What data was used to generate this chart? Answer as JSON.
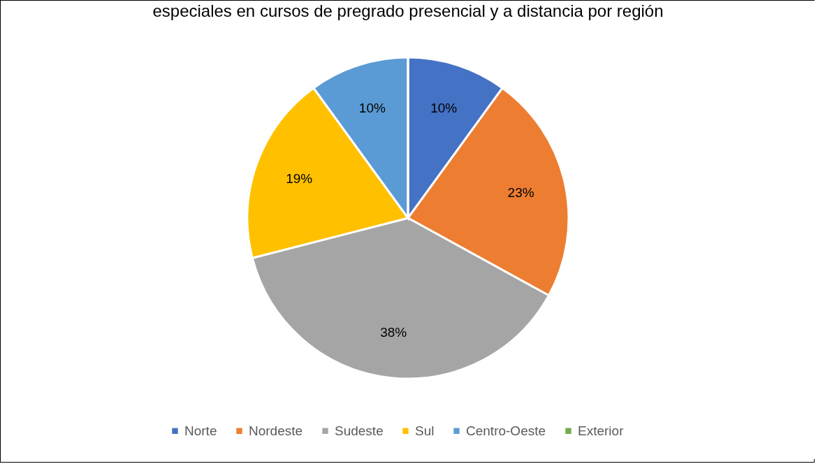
{
  "chart_data": {
    "type": "pie",
    "title": "especiales en cursos de pregrado presencial y a distancia por región",
    "categories": [
      "Norte",
      "Nordeste",
      "Sudeste",
      "Sul",
      "Centro-Oeste",
      "Exterior"
    ],
    "values": [
      10,
      23,
      38,
      19,
      10,
      0
    ],
    "colors": [
      "#4472c4",
      "#ed7d31",
      "#a5a5a5",
      "#ffc000",
      "#5b9bd5",
      "#70ad47"
    ],
    "value_labels": [
      "10%",
      "23%",
      "38%",
      "19%",
      "10%",
      null
    ],
    "legend": "bottom"
  }
}
